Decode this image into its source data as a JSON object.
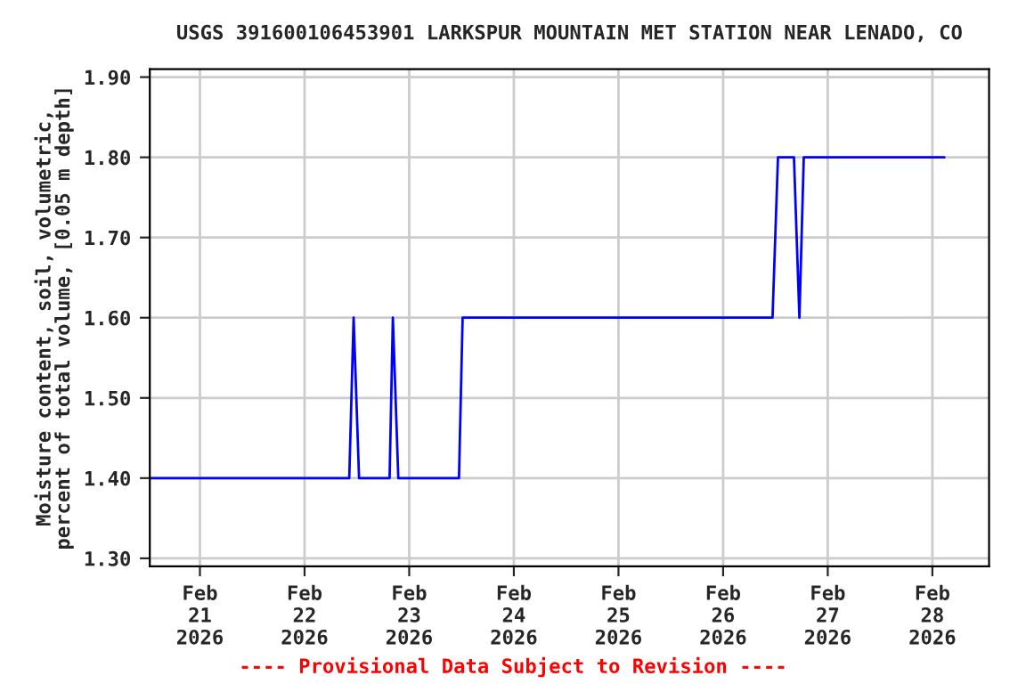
{
  "chart_data": {
    "type": "line",
    "title": "USGS 391600106453901 LARKSPUR MOUNTAIN MET STATION NEAR LENADO, CO",
    "ylabel": "Moisture content, soil, volumetric,\npercent of total volume, [0.05 m depth]",
    "annotations": [
      "---- Provisional Data Subject to Revision ----"
    ],
    "series": [
      {
        "color": "#0000ff",
        "x": [
          "2026-02-20T12:30",
          "2026-02-22T10:15",
          "2026-02-22T11:15",
          "2026-02-22T12:30",
          "2026-02-22T19:30",
          "2026-02-22T20:15",
          "2026-02-22T21:30",
          "2026-02-23T11:25",
          "2026-02-23T12:15",
          "2026-02-26T11:20",
          "2026-02-26T12:35",
          "2026-02-26T16:15",
          "2026-02-26T17:30",
          "2026-02-26T18:30",
          "2026-02-28T02:45"
        ],
        "values": [
          1.4,
          1.4,
          1.6,
          1.4,
          1.4,
          1.6,
          1.4,
          1.4,
          1.6,
          1.6,
          1.8,
          1.8,
          1.6,
          1.8,
          1.8
        ]
      }
    ],
    "xlim": [
      "2026-02-20T12:30",
      "2026-02-28T13:00"
    ],
    "xticks": [
      {
        "value": "2026-02-21",
        "label": "Feb\n21\n2026"
      },
      {
        "value": "2026-02-22",
        "label": "Feb\n22\n2026"
      },
      {
        "value": "2026-02-23",
        "label": "Feb\n23\n2026"
      },
      {
        "value": "2026-02-24",
        "label": "Feb\n24\n2026"
      },
      {
        "value": "2026-02-25",
        "label": "Feb\n25\n2026"
      },
      {
        "value": "2026-02-26",
        "label": "Feb\n26\n2026"
      },
      {
        "value": "2026-02-27",
        "label": "Feb\n27\n2026"
      },
      {
        "value": "2026-02-28",
        "label": "Feb\n28\n2026"
      }
    ],
    "ylim": [
      1.29,
      1.91
    ],
    "yticks": [
      {
        "value": 1.3,
        "label": "1.30"
      },
      {
        "value": 1.4,
        "label": "1.40"
      },
      {
        "value": 1.5,
        "label": "1.50"
      },
      {
        "value": 1.6,
        "label": "1.60"
      },
      {
        "value": 1.7,
        "label": "1.70"
      },
      {
        "value": 1.8,
        "label": "1.80"
      },
      {
        "value": 1.9,
        "label": "1.90"
      }
    ],
    "grid": true,
    "line_style": "solid"
  }
}
